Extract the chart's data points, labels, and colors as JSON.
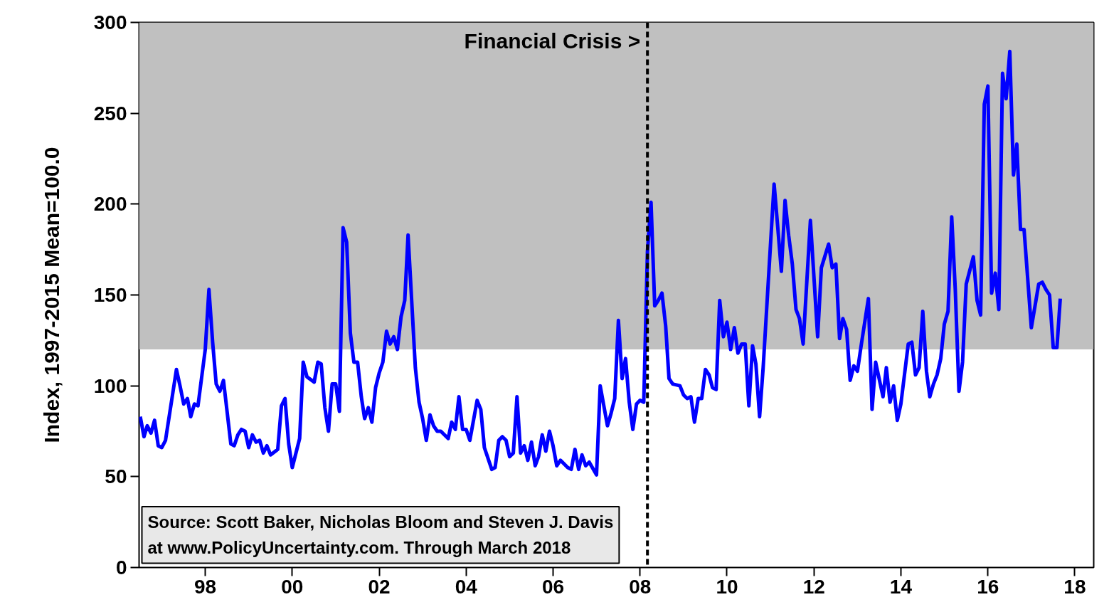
{
  "chart_data": {
    "type": "line",
    "ylabel": "Index, 1997-2015 Mean=100.0",
    "xlim": [
      "1996-12-22",
      "2018-12-07"
    ],
    "xticks": [
      {
        "value": "1998-07-01",
        "label": "98"
      },
      {
        "value": "2000-07-01",
        "label": "00"
      },
      {
        "value": "2002-07-01",
        "label": "02"
      },
      {
        "value": "2004-07-01",
        "label": "04"
      },
      {
        "value": "2006-07-01",
        "label": "06"
      },
      {
        "value": "2008-07-01",
        "label": "08"
      },
      {
        "value": "2010-07-01",
        "label": "10"
      },
      {
        "value": "2012-07-01",
        "label": "12"
      },
      {
        "value": "2014-07-01",
        "label": "14"
      },
      {
        "value": "2016-07-01",
        "label": "16"
      },
      {
        "value": "2018-07-01",
        "label": "18"
      }
    ],
    "ylim": [
      0,
      300
    ],
    "yticks": [
      0,
      50,
      100,
      150,
      200,
      250,
      300
    ],
    "grid": false,
    "line_style": "solid",
    "x": [
      "1997-01",
      "1997-02",
      "1997-03",
      "1997-04",
      "1997-05",
      "1997-06",
      "1997-07",
      "1997-08",
      "1997-11",
      "1997-12",
      "1998-01",
      "1998-02",
      "1998-03",
      "1998-04",
      "1998-05",
      "1998-07",
      "1998-08",
      "1998-09",
      "1998-10",
      "1998-11",
      "1998-12",
      "1999-02",
      "1999-03",
      "1999-04",
      "1999-05",
      "1999-06",
      "1999-07",
      "1999-08",
      "1999-09",
      "1999-10",
      "1999-11",
      "1999-12",
      "2000-01",
      "2000-03",
      "2000-04",
      "2000-05",
      "2000-06",
      "2000-07",
      "2000-09",
      "2000-10",
      "2000-11",
      "2001-01",
      "2001-02",
      "2001-03",
      "2001-04",
      "2001-05",
      "2001-06",
      "2001-07",
      "2001-08",
      "2001-09",
      "2001-10",
      "2001-11",
      "2001-12",
      "2002-01",
      "2002-02",
      "2002-03",
      "2002-04",
      "2002-05",
      "2002-06",
      "2002-07",
      "2002-08",
      "2002-09",
      "2002-10",
      "2002-11",
      "2002-12",
      "2003-01",
      "2003-02",
      "2003-03",
      "2003-05",
      "2003-06",
      "2003-07",
      "2003-08",
      "2003-09",
      "2003-10",
      "2003-11",
      "2003-12",
      "2004-02",
      "2004-03",
      "2004-04",
      "2004-05",
      "2004-06",
      "2004-07",
      "2004-08",
      "2004-10",
      "2004-11",
      "2004-12",
      "2005-02",
      "2005-03",
      "2005-04",
      "2005-05",
      "2005-06",
      "2005-07",
      "2005-08",
      "2005-09",
      "2005-10",
      "2005-11",
      "2005-12",
      "2006-01",
      "2006-02",
      "2006-03",
      "2006-04",
      "2006-05",
      "2006-06",
      "2006-07",
      "2006-08",
      "2006-09",
      "2006-11",
      "2006-12",
      "2007-01",
      "2007-02",
      "2007-03",
      "2007-04",
      "2007-05",
      "2007-07",
      "2007-08",
      "2007-10",
      "2007-11",
      "2007-12",
      "2008-01",
      "2008-02",
      "2008-03",
      "2008-04",
      "2008-05",
      "2008-06",
      "2008-07",
      "2008-08",
      "2008-09",
      "2008-10",
      "2008-11",
      "2008-12",
      "2009-01",
      "2009-02",
      "2009-03",
      "2009-04",
      "2009-06",
      "2009-07",
      "2009-08",
      "2009-09",
      "2009-10",
      "2009-11",
      "2009-12",
      "2010-01",
      "2010-02",
      "2010-03",
      "2010-04",
      "2010-05",
      "2010-06",
      "2010-07",
      "2010-08",
      "2010-09",
      "2010-10",
      "2010-11",
      "2010-12",
      "2011-01",
      "2011-02",
      "2011-03",
      "2011-04",
      "2011-05",
      "2011-08",
      "2011-09",
      "2011-10",
      "2011-11",
      "2011-12",
      "2012-01",
      "2012-02",
      "2012-03",
      "2012-04",
      "2012-06",
      "2012-08",
      "2012-09",
      "2012-11",
      "2012-12",
      "2013-01",
      "2013-02",
      "2013-03",
      "2013-04",
      "2013-05",
      "2013-06",
      "2013-07",
      "2013-08",
      "2013-10",
      "2013-11",
      "2013-12",
      "2014-02",
      "2014-03",
      "2014-04",
      "2014-05",
      "2014-06",
      "2014-07",
      "2014-09",
      "2014-10",
      "2014-11",
      "2014-12",
      "2015-01",
      "2015-02",
      "2015-03",
      "2015-04",
      "2015-05",
      "2015-06",
      "2015-07",
      "2015-08",
      "2015-09",
      "2015-10",
      "2015-11",
      "2015-12",
      "2016-01",
      "2016-03",
      "2016-04",
      "2016-05",
      "2016-06",
      "2016-07",
      "2016-08",
      "2016-09",
      "2016-10",
      "2016-11",
      "2016-12",
      "2017-01",
      "2017-02",
      "2017-03",
      "2017-04",
      "2017-05",
      "2017-07",
      "2017-09",
      "2017-10",
      "2017-11",
      "2017-12",
      "2018-01",
      "2018-02",
      "2018-03"
    ],
    "series": [
      {
        "color": "#0000ff",
        "values": [
          83,
          72,
          78,
          74,
          81,
          67,
          66,
          70,
          109,
          100,
          90,
          93,
          83,
          90,
          89,
          120,
          153,
          124,
          101,
          97,
          103,
          68,
          67,
          73,
          76,
          75,
          66,
          73,
          69,
          70,
          63,
          67,
          62,
          65,
          89,
          93,
          68,
          55,
          71,
          113,
          105,
          102,
          113,
          112,
          88,
          75,
          101,
          101,
          86,
          187,
          179,
          129,
          113,
          113,
          94,
          82,
          88,
          80,
          99,
          107,
          113,
          130,
          123,
          127,
          120,
          138,
          147,
          183,
          110,
          91,
          82,
          70,
          84,
          78,
          75,
          75,
          71,
          80,
          76,
          94,
          76,
          76,
          70,
          92,
          87,
          66,
          54,
          55,
          70,
          72,
          70,
          61,
          63,
          94,
          63,
          67,
          59,
          69,
          56,
          61,
          73,
          64,
          75,
          67,
          56,
          59,
          55,
          54,
          65,
          54,
          62,
          56,
          58,
          51,
          100,
          78,
          85,
          93,
          136,
          104,
          115,
          91,
          76,
          90,
          92,
          91,
          174,
          201,
          144,
          147,
          151,
          133,
          104,
          101,
          100,
          95,
          93,
          94,
          80,
          93,
          93,
          109,
          106,
          99,
          98,
          147,
          127,
          135,
          120,
          132,
          118,
          123,
          123,
          89,
          122,
          112,
          83,
          110,
          211,
          187,
          163,
          202,
          183,
          167,
          142,
          137,
          123,
          191,
          127,
          165,
          178,
          165,
          167,
          126,
          137,
          131,
          103,
          111,
          108,
          122,
          148,
          87,
          113,
          94,
          110,
          91,
          100,
          81,
          90,
          123,
          124,
          106,
          110,
          141,
          108,
          94,
          101,
          106,
          115,
          134,
          141,
          193,
          153,
          97,
          113,
          156,
          171,
          147,
          139,
          255,
          265,
          151,
          162,
          142,
          272,
          258,
          284,
          216,
          233,
          186,
          186,
          132,
          156,
          157,
          153,
          150,
          121,
          121,
          148
        ]
      }
    ],
    "bands": [
      {
        "axis": "y",
        "from": 120,
        "to": 300,
        "color": "#c0c0c0"
      }
    ],
    "ref_lines": [
      {
        "axis": "x",
        "value": "2008-09-01",
        "label": "Financial Crisis >",
        "color": "#000000",
        "line_style": "dashed"
      }
    ],
    "annotations": [
      "Source: Scott Baker, Nicholas Bloom and Steven J. Davis\nat www.PolicyUncertainty.com. Through March 2018"
    ]
  }
}
